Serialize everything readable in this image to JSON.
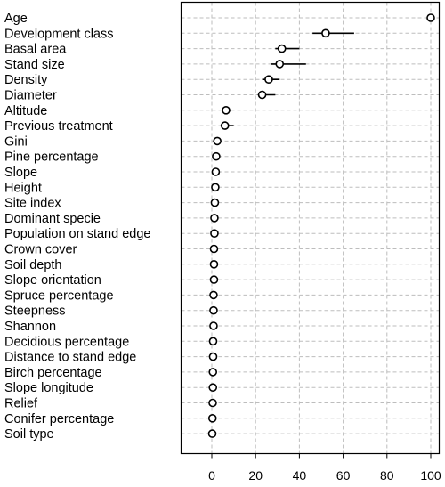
{
  "chart_data": {
    "type": "dotplot",
    "title": "",
    "xlabel": "",
    "ylabel": "",
    "xlim": [
      -15,
      102
    ],
    "xticks": [
      0,
      20,
      40,
      60,
      80,
      100
    ],
    "grid": true,
    "legend": "none",
    "colors": {
      "point": "#000000",
      "interval": "#000000",
      "grid": "#bdbdbd",
      "frame": "#000000"
    },
    "categories": [
      "Age",
      "Development class",
      "Basal area",
      "Stand size",
      "Density",
      "Diameter",
      "Altitude",
      "Previous treatment",
      "Gini",
      "Pine percentage",
      "Slope",
      "Height",
      "Site index",
      "Dominant specie",
      "Population on stand edge",
      "Crown cover",
      "Soil depth",
      "Slope orientation",
      "Spruce percentage",
      "Steepness",
      "Shannon",
      "Decidious percentage",
      "Distance to stand edge",
      "Birch percentage",
      "Slope longitude",
      "Relief",
      "Conifer percentage",
      "Soil type"
    ],
    "values": [
      100,
      52,
      32,
      31,
      26,
      23,
      6.5,
      6,
      2.5,
      2,
      1.8,
      1.6,
      1.4,
      1.2,
      1.2,
      1,
      1,
      1,
      0.8,
      0.8,
      0.8,
      0.6,
      0.6,
      0.5,
      0.5,
      0.4,
      0.3,
      0.2
    ],
    "lower": [
      99,
      46,
      29,
      27,
      23,
      21,
      5,
      4,
      1.5,
      1,
      1,
      1,
      0.5,
      0.3,
      0.5,
      0.3,
      0.5,
      0.3,
      0.2,
      0.2,
      0.3,
      0,
      0,
      0,
      0,
      0,
      0,
      0
    ],
    "upper": [
      100,
      65,
      40,
      43,
      31,
      29,
      8.5,
      10,
      4,
      3,
      2.5,
      2.5,
      2.5,
      2.3,
      2,
      2,
      2,
      2,
      1.5,
      2,
      1.5,
      1.5,
      1.5,
      1.5,
      1.5,
      1.5,
      1.3,
      1.2
    ]
  }
}
